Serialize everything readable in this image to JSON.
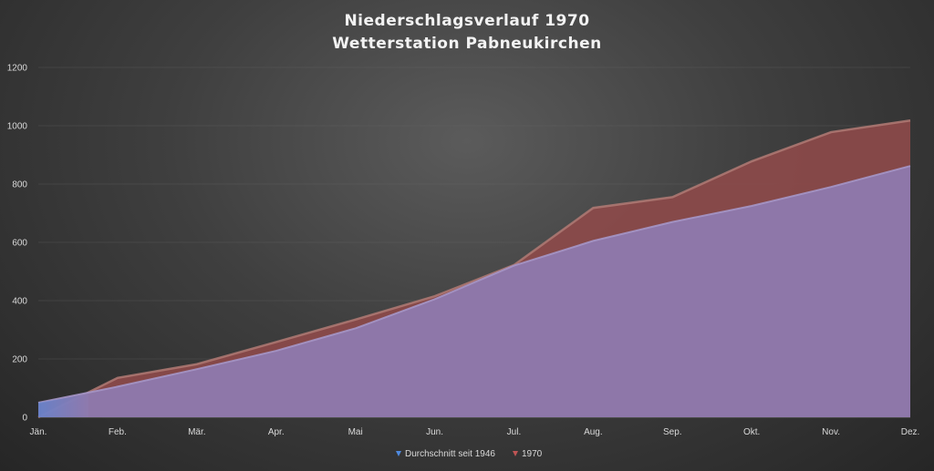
{
  "chart_data": {
    "type": "area",
    "title": "Niederschlagsverlauf 1970",
    "subtitle": "Wetterstation Pabneukirchen",
    "categories": [
      "Jän.",
      "Feb.",
      "Mär.",
      "Apr.",
      "Mai",
      "Jun.",
      "Jul.",
      "Aug.",
      "Sep.",
      "Okt.",
      "Nov.",
      "Dez."
    ],
    "ylim": [
      0,
      1200
    ],
    "yticks": [
      0,
      200,
      400,
      600,
      800,
      1000,
      1200
    ],
    "grid": true,
    "legend_position": "bottom",
    "series": [
      {
        "name": "Durchschnitt seit 1946",
        "color": "#8f7bb0",
        "values": [
          50,
          105,
          165,
          228,
          305,
          405,
          520,
          605,
          670,
          725,
          790,
          862
        ]
      },
      {
        "name": "1970",
        "color": "#8c4a4a",
        "values": [
          0,
          135,
          182,
          258,
          335,
          415,
          522,
          718,
          755,
          878,
          978,
          1018
        ]
      }
    ]
  }
}
